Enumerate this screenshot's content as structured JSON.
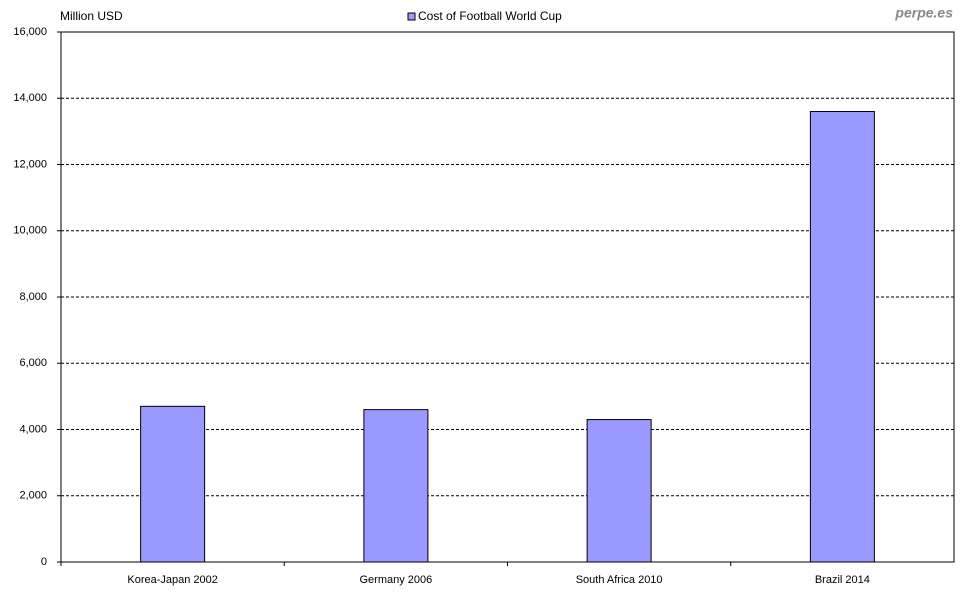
{
  "chart_data": {
    "type": "bar",
    "y_label": "Million USD",
    "watermark": "perpe.es",
    "categories": [
      "Korea-Japan 2002",
      "Germany 2006",
      "South Africa 2010",
      "Brazil 2014"
    ],
    "series": [
      {
        "name": "Cost of Football World Cup",
        "color": "#9999ff",
        "values": [
          4700,
          4600,
          4300,
          13600
        ]
      }
    ],
    "ylim": [
      0,
      16000
    ],
    "yticks": [
      0,
      {
        "value": 2000,
        "label": "2,000"
      },
      {
        "value": 4000,
        "label": "4,000"
      },
      {
        "value": 6000,
        "label": "6,000"
      },
      {
        "value": 8000,
        "label": "8,000"
      },
      {
        "value": 10000,
        "label": "10,000"
      },
      {
        "value": 12000,
        "label": "12,000"
      },
      {
        "value": 14000,
        "label": "14,000"
      },
      {
        "value": 16000,
        "label": "16,000"
      }
    ],
    "grid": true,
    "legend": "top"
  }
}
